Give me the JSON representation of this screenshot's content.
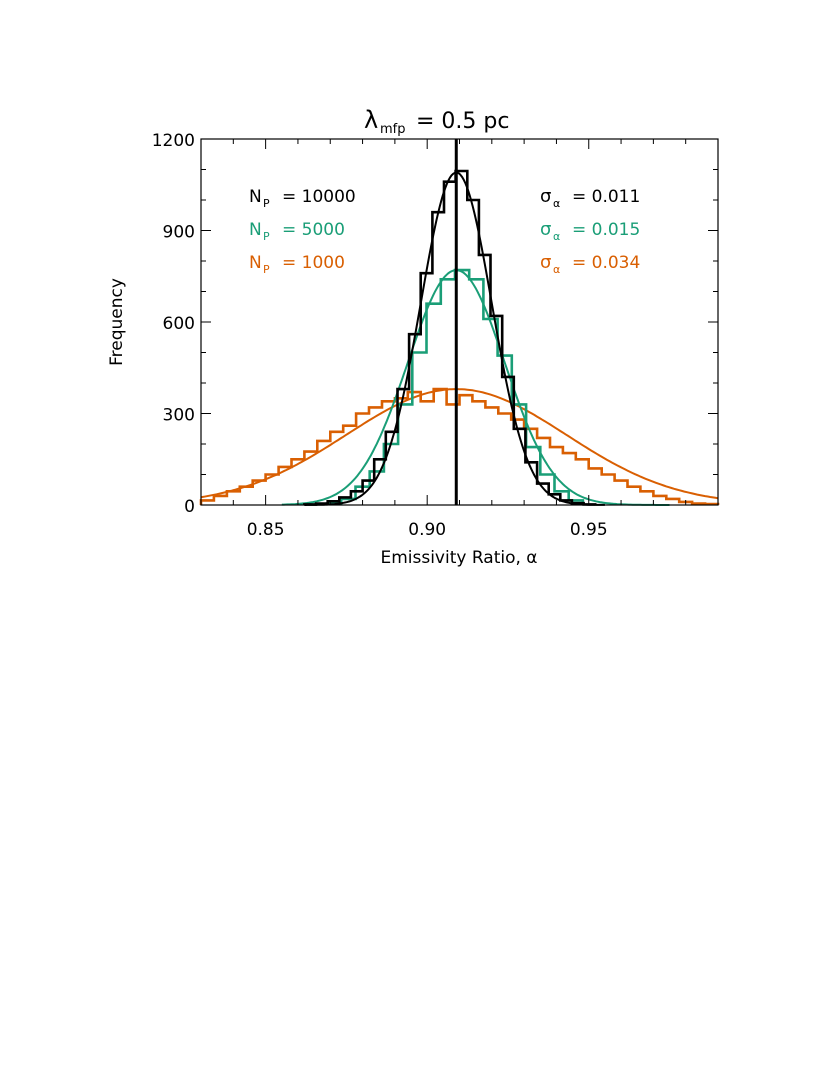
{
  "chart_data": {
    "type": "line",
    "title": "λ",
    "title_sub": "mfp",
    "title_suffix": "= 0.5 pc",
    "xlabel": "Emissivity Ratio, α",
    "ylabel": "Frequency",
    "xlim": [
      0.83,
      0.99
    ],
    "ylim": [
      0,
      1200
    ],
    "xticks": [
      0.85,
      0.9,
      0.95
    ],
    "xtick_labels": [
      "0.85",
      "0.90",
      "0.95"
    ],
    "yticks": [
      0,
      300,
      600,
      900,
      1200
    ],
    "ytick_labels": [
      "0",
      "300",
      "600",
      "900",
      "1200"
    ],
    "vertical_line_x": 0.909,
    "grid": false,
    "legend": {
      "placement": "top-left",
      "items": [
        {
          "label": "N",
          "sub": "P",
          "value": "= 10000",
          "color": "#000000"
        },
        {
          "label": "N",
          "sub": "P",
          "value": "= 5000",
          "color": "#1a9e77"
        },
        {
          "label": "N",
          "sub": "P",
          "value": "= 1000",
          "color": "#d95f02"
        }
      ]
    },
    "sigma_legend": {
      "placement": "top-right",
      "items": [
        {
          "label": "σ",
          "sub": "α",
          "value": "= 0.011",
          "color": "#000000"
        },
        {
          "label": "σ",
          "sub": "α",
          "value": "= 0.015",
          "color": "#1a9e77"
        },
        {
          "label": "σ",
          "sub": "α",
          "value": "= 0.034",
          "color": "#d95f02"
        }
      ]
    },
    "series": [
      {
        "name": "N_P = 10000",
        "color": "#000000",
        "fit": {
          "mean": 0.909,
          "sigma": 0.011,
          "amplitude": 1090,
          "range": [
            0.862,
            0.955
          ]
        },
        "histogram": {
          "edges": [
            0.862,
            0.8656,
            0.8692,
            0.8728,
            0.8764,
            0.88,
            0.8836,
            0.8872,
            0.8908,
            0.8944,
            0.898,
            0.9016,
            0.9052,
            0.9088,
            0.9124,
            0.916,
            0.9196,
            0.9232,
            0.9268,
            0.9304,
            0.934,
            0.9376,
            0.9412,
            0.9448,
            0.9484,
            0.952
          ],
          "counts": [
            2,
            5,
            12,
            25,
            45,
            80,
            150,
            240,
            380,
            560,
            760,
            960,
            1060,
            1095,
            1000,
            820,
            620,
            420,
            250,
            140,
            70,
            35,
            15,
            6,
            2
          ]
        }
      },
      {
        "name": "N_P = 5000",
        "color": "#1a9e77",
        "fit": {
          "mean": 0.909,
          "sigma": 0.015,
          "amplitude": 770,
          "range": [
            0.855,
            0.975
          ]
        },
        "histogram": {
          "edges": [
            0.869,
            0.8734,
            0.8778,
            0.8822,
            0.8866,
            0.891,
            0.8954,
            0.8998,
            0.9042,
            0.9086,
            0.913,
            0.9174,
            0.9218,
            0.9262,
            0.9306,
            0.935,
            0.9394,
            0.9438,
            0.9482
          ],
          "counts": [
            5,
            20,
            60,
            110,
            200,
            330,
            500,
            660,
            740,
            770,
            740,
            610,
            490,
            330,
            190,
            100,
            45,
            15
          ]
        }
      },
      {
        "name": "N_P = 1000",
        "color": "#d95f02",
        "fit": {
          "mean": 0.909,
          "sigma": 0.034,
          "amplitude": 380,
          "range": [
            0.83,
            0.99
          ]
        },
        "histogram": {
          "edges": [
            0.83,
            0.834,
            0.838,
            0.842,
            0.846,
            0.85,
            0.854,
            0.858,
            0.862,
            0.866,
            0.87,
            0.874,
            0.878,
            0.882,
            0.886,
            0.89,
            0.894,
            0.898,
            0.902,
            0.906,
            0.91,
            0.914,
            0.918,
            0.922,
            0.926,
            0.93,
            0.934,
            0.938,
            0.942,
            0.946,
            0.95,
            0.954,
            0.958,
            0.962,
            0.966,
            0.97,
            0.974,
            0.978,
            0.982,
            0.986,
            0.99
          ],
          "counts": [
            15,
            30,
            45,
            60,
            80,
            100,
            125,
            150,
            175,
            210,
            240,
            260,
            300,
            320,
            340,
            350,
            370,
            340,
            380,
            330,
            360,
            340,
            320,
            300,
            280,
            250,
            220,
            190,
            170,
            150,
            120,
            100,
            80,
            60,
            45,
            30,
            20,
            10,
            5,
            3
          ]
        }
      }
    ]
  }
}
